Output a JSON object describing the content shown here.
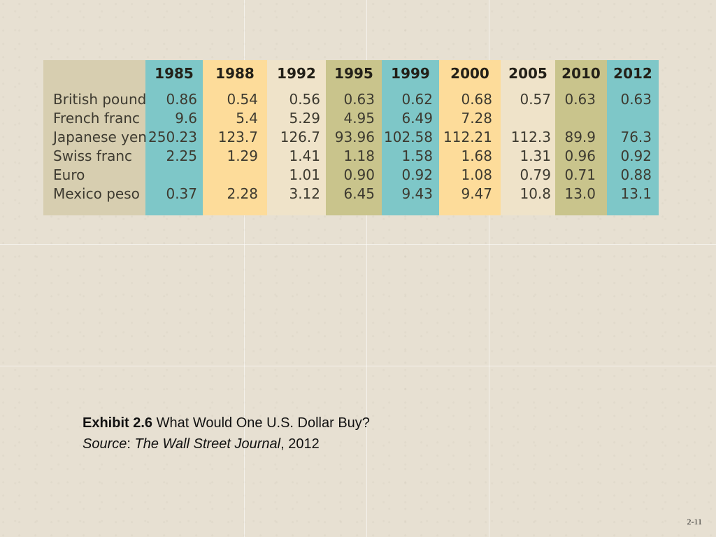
{
  "table": {
    "years": [
      "1985",
      "1988",
      "1992",
      "1995",
      "1999",
      "2000",
      "2005",
      "2010",
      "2012"
    ],
    "column_colors": [
      "#7ec7c8",
      "#fddc9a",
      "#efe3c9",
      "#c9c48c",
      "#7ec7c8",
      "#fddc9a",
      "#efe3c9",
      "#c9c48c",
      "#7ec7c8"
    ],
    "label_color": "#d7ceb0",
    "rows": [
      {
        "label": "British pound",
        "values": [
          "0.86",
          "0.54",
          "0.56",
          "0.63",
          "0.62",
          "0.68",
          "0.57",
          "0.63",
          "0.63"
        ]
      },
      {
        "label": "French franc",
        "values": [
          "9.6",
          "5.4",
          "5.29",
          "4.95",
          "6.49",
          "7.28",
          "",
          "",
          ""
        ]
      },
      {
        "label": "Japanese yen",
        "values": [
          "250.23",
          "123.7",
          "126.7",
          "93.96",
          "102.58",
          "112.21",
          "112.3",
          "89.9",
          "76.3"
        ]
      },
      {
        "label": "Swiss franc",
        "values": [
          "2.25",
          "1.29",
          "1.41",
          "1.18",
          "1.58",
          "1.68",
          "1.31",
          "0.96",
          "0.92"
        ]
      },
      {
        "label": "Euro",
        "values": [
          "",
          "",
          "1.01",
          "0.90",
          "0.92",
          "1.08",
          "0.79",
          "0.71",
          "0.88"
        ]
      },
      {
        "label": "Mexico peso",
        "values": [
          "0.37",
          "2.28",
          "3.12",
          "6.45",
          "9.43",
          "9.47",
          "10.8",
          "13.0",
          "13.1"
        ]
      }
    ]
  },
  "caption": {
    "exhibit_label": "Exhibit 2.6",
    "exhibit_title": " What Would One U.S. Dollar Buy?",
    "source_label": "Source",
    "source_sep": ": ",
    "source_pub": "The Wall Street Journal",
    "source_year": ", 2012"
  },
  "slide_number": "2-11"
}
